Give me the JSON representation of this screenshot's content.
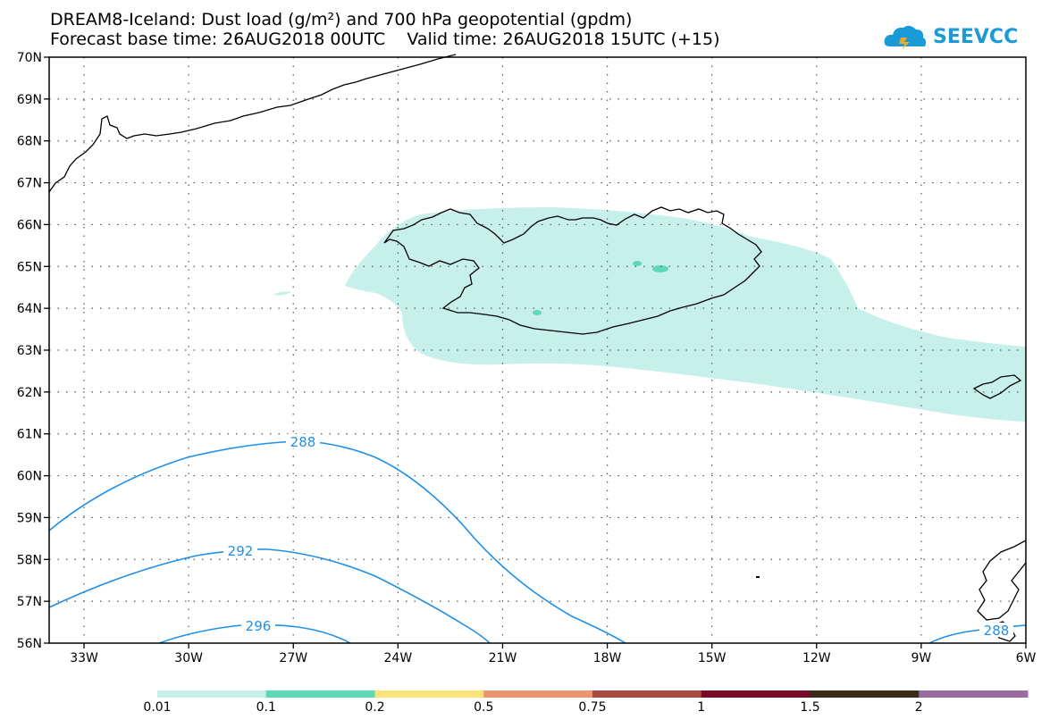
{
  "header": {
    "line1": "DREAM8-Iceland: Dust load (g/m²) and 700 hPa geopotential (gpdm)",
    "line2": "Forecast base time: 26AUG2018 00UTC    Valid time: 26AUG2018 15UTC (+15)"
  },
  "logo": {
    "text": "SEEVCCC",
    "color": "#1a9ad6"
  },
  "axes": {
    "lat_labels": [
      "70N",
      "69N",
      "68N",
      "67N",
      "66N",
      "65N",
      "64N",
      "63N",
      "62N",
      "61N",
      "60N",
      "59N",
      "58N",
      "57N",
      "56N"
    ],
    "lon_labels": [
      "33W",
      "30W",
      "27W",
      "24W",
      "21W",
      "18W",
      "15W",
      "12W",
      "9W",
      "6W"
    ]
  },
  "contours": {
    "color": "#1e90e8",
    "labels": [
      "288",
      "292",
      "296",
      "288"
    ]
  },
  "dust_fill_color": "#c8f0ea",
  "dust_spot_color": "#5ed9b8",
  "legend": {
    "labels": [
      "0.01",
      "0.1",
      "0.2",
      "0.5",
      "0.75",
      "1",
      "1.5",
      "2"
    ],
    "colors": [
      "#c8f0ea",
      "#5ed9b8",
      "#f7e37a",
      "#ec9370",
      "#a94a40",
      "#7a0a2a",
      "#3a2a16",
      "#9a6ca0"
    ]
  }
}
